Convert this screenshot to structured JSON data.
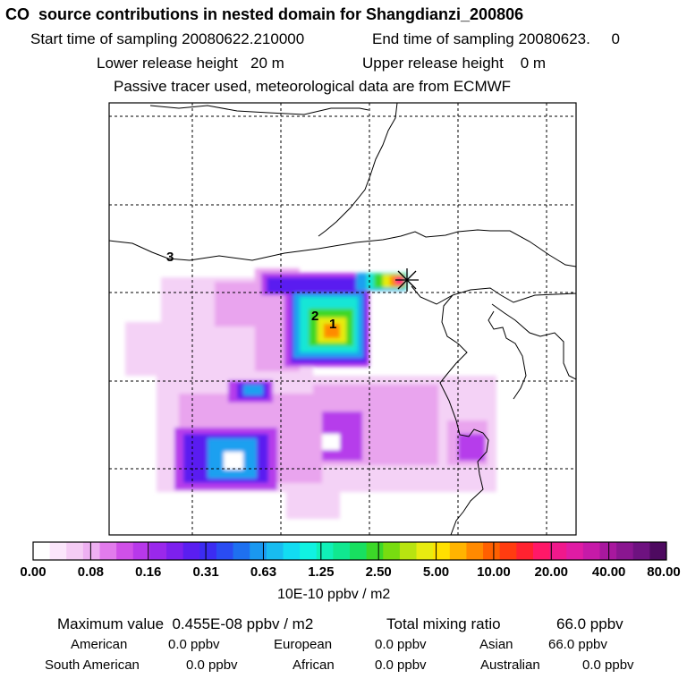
{
  "header": {
    "title": "CO  source contributions in nested domain for Shangdianzi_200806",
    "start_time": "Start time of sampling 20080622.210000",
    "end_time": "End time of sampling 20080623.     0",
    "lower_release": "Lower release height   20 m",
    "upper_release": "Upper release height    0 m",
    "note": "Passive tracer used, meteorological data are from ECMWF"
  },
  "map": {
    "labels": [
      "1",
      "2",
      "3"
    ],
    "receptor_marker": "star",
    "grid": "dashed"
  },
  "colorbar": {
    "tick_labels": [
      "0.00",
      "0.08",
      "0.16",
      "0.31",
      "0.63",
      "1.25",
      "2.50",
      "5.00",
      "10.00",
      "20.00",
      "40.00",
      "80.00"
    ],
    "units": "10E-10 ppbv / m2",
    "colors": [
      "#ffffff",
      "#fbe6fb",
      "#f5ccf5",
      "#eeb0f2",
      "#e27bec",
      "#d050e8",
      "#b838ea",
      "#9a28ec",
      "#7d20ee",
      "#5a1ef0",
      "#3c2cf2",
      "#2a4cf2",
      "#1e70f0",
      "#1a98f0",
      "#18bcf0",
      "#12dcf2",
      "#10f2e2",
      "#10f0b8",
      "#10e890",
      "#18e060",
      "#3cd828",
      "#78dc10",
      "#b8e410",
      "#e8ec10",
      "#ffe000",
      "#ffb400",
      "#ff8a00",
      "#ff6000",
      "#ff3c10",
      "#ff2230",
      "#ff1868",
      "#f0188c",
      "#e01ca4",
      "#c61aa8",
      "#a8189e",
      "#8a1690",
      "#6e1280",
      "#4e0a60"
    ]
  },
  "stats": {
    "max_label": "Maximum value  0.455E-08 ppbv / m2",
    "total_label": "Total mixing ratio",
    "total_value": "66.0 ppbv",
    "regions": [
      {
        "name": "American",
        "value": "0.0 ppbv"
      },
      {
        "name": "European",
        "value": "0.0 ppbv"
      },
      {
        "name": "Asian",
        "value": "66.0 ppbv"
      },
      {
        "name": "South American",
        "value": "0.0 ppbv"
      },
      {
        "name": "African",
        "value": "0.0 ppbv"
      },
      {
        "name": "Australian",
        "value": "0.0 ppbv"
      }
    ]
  }
}
